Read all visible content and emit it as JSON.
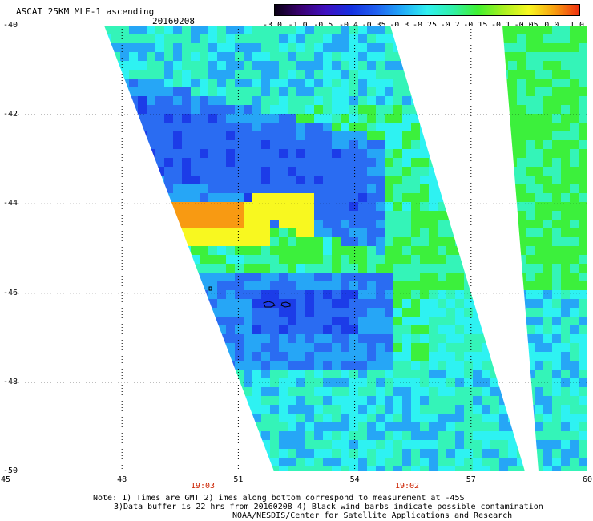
{
  "header": {
    "title": "ASCAT 25KM MLE-1 ascending",
    "date": "20160208"
  },
  "colorbar": {
    "labels": [
      "-3.0",
      "-1.0",
      "-0.5",
      "-0.4",
      "-0.35",
      "-0.3",
      "-0.25",
      "-0.2",
      "-0.15",
      "-0.1",
      "-0.05",
      "0.0",
      "1.0"
    ],
    "colors": [
      "#0a0014",
      "#3a0070",
      "#4010c0",
      "#1530e0",
      "#2060f0",
      "#20a8f8",
      "#30f0f0",
      "#30f0a8",
      "#40f030",
      "#a8f020",
      "#f8f820",
      "#f8a010",
      "#f03010"
    ]
  },
  "map": {
    "lat_labels": [
      "-40",
      "-42",
      "-44",
      "-46",
      "-48",
      "-50"
    ],
    "lon_labels": [
      "45",
      "48",
      "51",
      "54",
      "57",
      "60"
    ],
    "time_labels": [
      "19:03",
      "19:02"
    ],
    "swath_colors": {
      "deep_blue": "#1c3ce8",
      "blue": "#2a6cf2",
      "light_blue": "#26a6f6",
      "cyan": "#2ef2f2",
      "aqua": "#34f4b8",
      "green": "#3cf03c",
      "yellow": "#f8f820",
      "orange": "#f89a12"
    }
  },
  "notes": {
    "line1": "Note: 1) Times are GMT 2)Times along bottom correspond to measurement at -45S",
    "line2": "3)Data buffer is 22 hrs from 20160208 4) Black wind barbs indicate possible contamination",
    "line3": "NOAA/NESDIS/Center for Satellite Applications and Research"
  }
}
